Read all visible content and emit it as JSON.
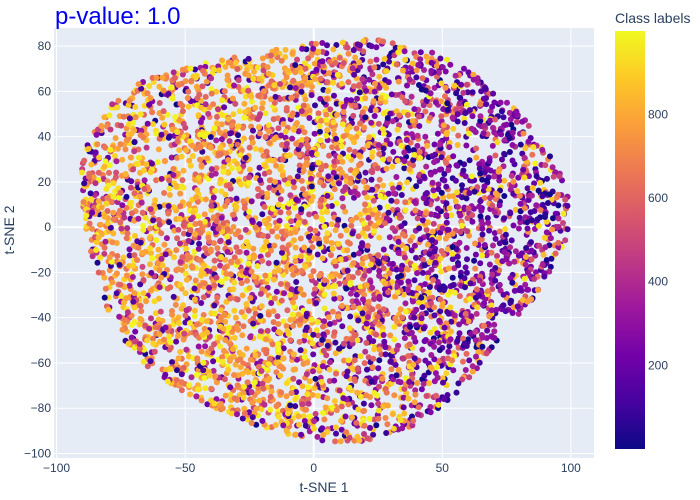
{
  "chart_data": {
    "type": "scatter",
    "xlabel": "t-SNE 1",
    "ylabel": "t-SNE 2",
    "xlim": [
      -101,
      109
    ],
    "ylim": [
      -102,
      88
    ],
    "x_ticks": [
      -100,
      -50,
      0,
      50,
      100
    ],
    "y_ticks": [
      -100,
      -80,
      -60,
      -40,
      -20,
      0,
      20,
      40,
      60,
      80
    ],
    "x_tick_labels": [
      "−100",
      "−50",
      "0",
      "50",
      "100"
    ],
    "y_tick_labels": [
      "−100",
      "−80",
      "−60",
      "−40",
      "−20",
      "0",
      "20",
      "40",
      "60",
      "80"
    ],
    "grid": true,
    "annotation": "p-value: 1.0",
    "colorbar": {
      "title": "Class labels",
      "range": [
        0,
        999
      ],
      "ticks": [
        200,
        400,
        600,
        800
      ],
      "tick_labels": [
        "200",
        "400",
        "600",
        "800"
      ],
      "colorscale": [
        "#0d0887",
        "#46039f",
        "#7201a8",
        "#9c179e",
        "#bd3786",
        "#d8576b",
        "#ed7953",
        "#fb9f3a",
        "#fdca26",
        "#f0f921"
      ]
    },
    "colors": {
      "plot_bg": "#e5ecf6",
      "grid": "#ffffff",
      "text": "#2a3f5f",
      "annotation": "#0000ee"
    },
    "point_cloud": {
      "n_points": 5000,
      "center": [
        0,
        0
      ],
      "x_extent": [
        -91,
        96
      ],
      "y_extent": [
        -90,
        86
      ],
      "color_regions": "orange/yellow on left (x < 0), purple/dark on right (x > 20), mixed in center"
    }
  }
}
